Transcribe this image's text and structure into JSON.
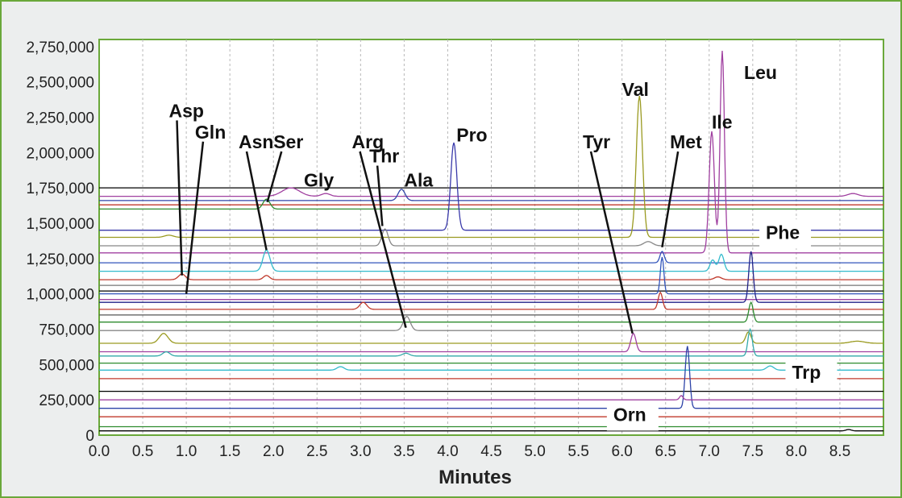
{
  "chart_data": {
    "type": "line",
    "title": "",
    "xlabel": "Minutes",
    "ylabel": "",
    "xlim": [
      0,
      9
    ],
    "ylim": [
      0,
      2800000
    ],
    "grid": "vertical dashed",
    "x_ticks": [
      0.0,
      0.5,
      1.0,
      1.5,
      2.0,
      2.5,
      3.0,
      3.5,
      4.0,
      4.5,
      5.0,
      5.5,
      6.0,
      6.5,
      7.0,
      7.5,
      8.0,
      8.5
    ],
    "x_tick_labels": [
      "0.0",
      "0.5",
      "1.0",
      "1.5",
      "2.0",
      "2.5",
      "3.0",
      "3.5",
      "4.0",
      "4.5",
      "5.0",
      "5.5",
      "6.0",
      "6.5",
      "7.0",
      "7.5",
      "8.0",
      "8.5"
    ],
    "y_ticks": [
      0,
      250000,
      500000,
      750000,
      1000000,
      1250000,
      1500000,
      1750000,
      2000000,
      2250000,
      2500000,
      2750000
    ],
    "y_tick_labels": [
      "0",
      "250,000",
      "500,000",
      "750,000",
      "1,000,000",
      "1,250,000",
      "1,500,000",
      "1,750,000",
      "2,000,000",
      "2,250,000",
      "2,500,000",
      "2,750,000"
    ],
    "series": [
      {
        "color": "#000000",
        "baseline": 1750000,
        "peaks": []
      },
      {
        "color": "#a040a0",
        "baseline": 1690000,
        "peaks": [
          {
            "x": 2.2,
            "h": 60000,
            "w": 0.1
          },
          {
            "x": 2.6,
            "h": 20000,
            "w": 0.05
          },
          {
            "x": 8.65,
            "h": 20000,
            "w": 0.06
          }
        ]
      },
      {
        "color": "#2e44a8",
        "baseline": 1660000,
        "peaks": [
          {
            "x": 3.47,
            "h": 80000,
            "w": 0.04
          }
        ]
      },
      {
        "color": "#c0392b",
        "baseline": 1630000,
        "peaks": []
      },
      {
        "color": "#2e8b2e",
        "baseline": 1600000,
        "peaks": [
          {
            "x": 1.92,
            "h": 70000,
            "w": 0.04
          }
        ]
      },
      {
        "color": "#3a3aaa",
        "baseline": 1450000,
        "peaks": [
          {
            "x": 4.07,
            "h": 620000,
            "w": 0.035
          }
        ]
      },
      {
        "color": "#9a9a20",
        "baseline": 1400000,
        "peaks": [
          {
            "x": 0.8,
            "h": 15000,
            "w": 0.05
          },
          {
            "x": 6.2,
            "h": 1000000,
            "w": 0.035
          }
        ]
      },
      {
        "color": "#888888",
        "baseline": 1340000,
        "peaks": [
          {
            "x": 3.28,
            "h": 120000,
            "w": 0.035
          },
          {
            "x": 6.3,
            "h": 30000,
            "w": 0.05
          }
        ]
      },
      {
        "color": "#a040a0",
        "baseline": 1290000,
        "peaks": [
          {
            "x": 7.03,
            "h": 860000,
            "w": 0.03
          },
          {
            "x": 7.15,
            "h": 1430000,
            "w": 0.025
          }
        ]
      },
      {
        "color": "#3355bb",
        "baseline": 1220000,
        "peaks": [
          {
            "x": 6.46,
            "h": 80000,
            "w": 0.025
          }
        ]
      },
      {
        "color": "#33bbcc",
        "baseline": 1160000,
        "peaks": [
          {
            "x": 1.92,
            "h": 150000,
            "w": 0.04
          },
          {
            "x": 7.04,
            "h": 80000,
            "w": 0.03
          },
          {
            "x": 7.14,
            "h": 120000,
            "w": 0.03
          }
        ]
      },
      {
        "color": "#c0392b",
        "baseline": 1100000,
        "peaks": [
          {
            "x": 0.95,
            "h": 40000,
            "w": 0.04
          },
          {
            "x": 1.92,
            "h": 30000,
            "w": 0.035
          },
          {
            "x": 7.1,
            "h": 20000,
            "w": 0.04
          }
        ]
      },
      {
        "color": "#777777",
        "baseline": 1060000,
        "peaks": []
      },
      {
        "color": "#000000",
        "baseline": 1020000,
        "peaks": []
      },
      {
        "color": "#3355bb",
        "baseline": 1000000,
        "peaks": [
          {
            "x": 6.46,
            "h": 260000,
            "w": 0.02
          }
        ]
      },
      {
        "color": "#a040a0",
        "baseline": 960000,
        "peaks": []
      },
      {
        "color": "#222288",
        "baseline": 940000,
        "peaks": [
          {
            "x": 7.48,
            "h": 360000,
            "w": 0.025
          }
        ]
      },
      {
        "color": "#c0392b",
        "baseline": 890000,
        "peaks": [
          {
            "x": 3.03,
            "h": 50000,
            "w": 0.04
          },
          {
            "x": 6.44,
            "h": 120000,
            "w": 0.025
          }
        ]
      },
      {
        "color": "#555555",
        "baseline": 850000,
        "peaks": []
      },
      {
        "color": "#2e8b2e",
        "baseline": 800000,
        "peaks": [
          {
            "x": 7.48,
            "h": 140000,
            "w": 0.025
          }
        ]
      },
      {
        "color": "#888888",
        "baseline": 740000,
        "peaks": [
          {
            "x": 3.53,
            "h": 100000,
            "w": 0.04
          }
        ]
      },
      {
        "color": "#9a9a20",
        "baseline": 650000,
        "peaks": [
          {
            "x": 0.74,
            "h": 70000,
            "w": 0.05
          },
          {
            "x": 7.45,
            "h": 80000,
            "w": 0.03
          },
          {
            "x": 8.7,
            "h": 15000,
            "w": 0.08
          }
        ]
      },
      {
        "color": "#a040a0",
        "baseline": 590000,
        "peaks": [
          {
            "x": 6.13,
            "h": 130000,
            "w": 0.03
          }
        ]
      },
      {
        "color": "#33aaaa",
        "baseline": 560000,
        "peaks": [
          {
            "x": 0.77,
            "h": 30000,
            "w": 0.04
          },
          {
            "x": 3.52,
            "h": 20000,
            "w": 0.04
          },
          {
            "x": 7.47,
            "h": 190000,
            "w": 0.025
          }
        ]
      },
      {
        "color": "#2e8b2e",
        "baseline": 510000,
        "peaks": []
      },
      {
        "color": "#33bbcc",
        "baseline": 460000,
        "peaks": [
          {
            "x": 2.77,
            "h": 25000,
            "w": 0.04
          },
          {
            "x": 7.7,
            "h": 30000,
            "w": 0.04
          }
        ]
      },
      {
        "color": "#c0392b",
        "baseline": 400000,
        "peaks": []
      },
      {
        "color": "#000000",
        "baseline": 310000,
        "peaks": []
      },
      {
        "color": "#2e44a8",
        "baseline": 190000,
        "peaks": [
          {
            "x": 6.75,
            "h": 440000,
            "w": 0.025
          }
        ]
      },
      {
        "color": "#a040a0",
        "baseline": 250000,
        "peaks": [
          {
            "x": 6.68,
            "h": 30000,
            "w": 0.02
          }
        ]
      },
      {
        "color": "#c0392b",
        "baseline": 130000,
        "peaks": []
      },
      {
        "color": "#2e8b2e",
        "baseline": 60000,
        "peaks": []
      },
      {
        "color": "#000000",
        "baseline": 30000,
        "peaks": [
          {
            "x": 8.6,
            "h": 10000,
            "w": 0.03
          }
        ]
      }
    ],
    "annotations": [
      {
        "text": "Asp",
        "x": 0.8,
        "y": 2250000,
        "tx": 0.95,
        "ty": 1130000
      },
      {
        "text": "Gln",
        "x": 1.1,
        "y": 2100000,
        "tx": 1.0,
        "ty": 1000000
      },
      {
        "text": "Asn",
        "x": 1.6,
        "y": 2030000,
        "tx": 1.92,
        "ty": 1310000
      },
      {
        "text": "Ser",
        "x": 2.0,
        "y": 2030000,
        "tx": 1.93,
        "ty": 1650000
      },
      {
        "text": "Gly",
        "x": 2.35,
        "y": 1760000,
        "tx": null,
        "ty": null
      },
      {
        "text": "Arg",
        "x": 2.9,
        "y": 2030000,
        "tx": 3.52,
        "ty": 760000
      },
      {
        "text": "Thr",
        "x": 3.1,
        "y": 1930000,
        "tx": 3.25,
        "ty": 1480000
      },
      {
        "text": "Ala",
        "x": 3.5,
        "y": 1760000,
        "tx": null,
        "ty": null
      },
      {
        "text": "Pro",
        "x": 4.1,
        "y": 2080000,
        "tx": null,
        "ty": null
      },
      {
        "text": "Tyr",
        "x": 5.55,
        "y": 2030000,
        "tx": 6.12,
        "ty": 720000
      },
      {
        "text": "Val",
        "x": 6.0,
        "y": 2400000,
        "tx": null,
        "ty": null
      },
      {
        "text": "Met",
        "x": 6.55,
        "y": 2030000,
        "tx": 6.46,
        "ty": 1330000
      },
      {
        "text": "Ile",
        "x": 7.03,
        "y": 2170000,
        "tx": null,
        "ty": null
      },
      {
        "text": "Leu",
        "x": 7.4,
        "y": 2520000,
        "tx": null,
        "ty": null
      },
      {
        "text": "Phe",
        "x": 7.65,
        "y": 1390000,
        "tx": null,
        "ty": null
      },
      {
        "text": "Trp",
        "x": 7.95,
        "y": 400000,
        "tx": null,
        "ty": null
      },
      {
        "text": "Orn",
        "x": 5.9,
        "y": 100000,
        "tx": null,
        "ty": null
      }
    ]
  }
}
